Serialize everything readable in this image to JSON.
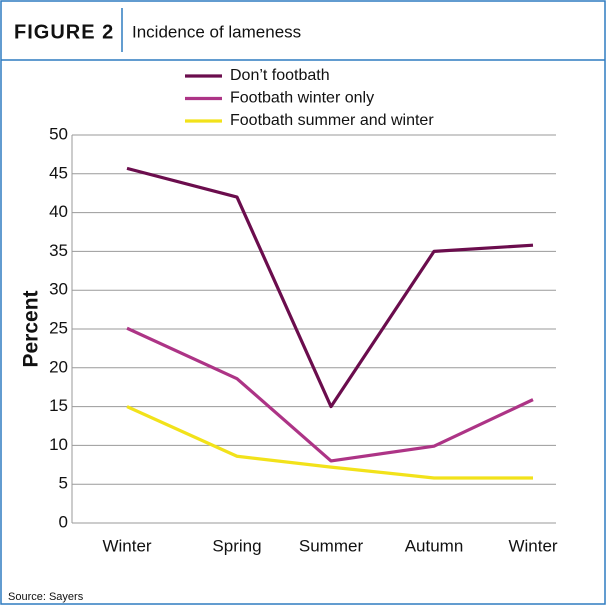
{
  "chart_data": {
    "type": "line",
    "figure_label": "FIGURE 2",
    "title": "Incidence of lameness",
    "y_label": "Percent",
    "source": "Source: Sayers",
    "categories": [
      "Winter",
      "Spring",
      "Summer",
      "Autumn",
      "Winter"
    ],
    "series": [
      {
        "name": "Don’t footbath",
        "color": "#6b0d4d",
        "values": [
          45.7,
          42,
          15,
          35,
          35.8
        ]
      },
      {
        "name": "Footbath winter only",
        "color": "#ad3486",
        "values": [
          25.1,
          18.6,
          8,
          9.9,
          15.9
        ]
      },
      {
        "name": "Footbath summer and winter",
        "color": "#f2e21a",
        "values": [
          15,
          8.6,
          7.2,
          5.8,
          5.8
        ]
      }
    ],
    "ylim": [
      0,
      50
    ],
    "yticks": [
      0,
      5,
      10,
      15,
      20,
      25,
      30,
      35,
      40,
      45,
      50
    ],
    "grid": true
  }
}
